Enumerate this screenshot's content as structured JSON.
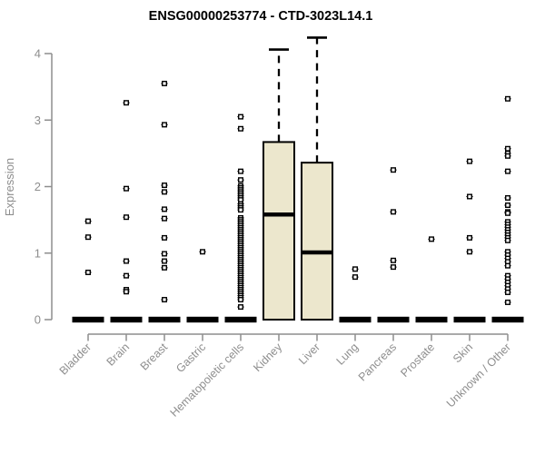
{
  "title": "ENSG00000253774 - CTD-3023L14.1",
  "y_axis_label": "Expression",
  "chart_data": {
    "type": "boxplot",
    "title": "ENSG00000253774 - CTD-3023L14.1",
    "xlabel": "",
    "ylabel": "Expression",
    "ylim": [
      0,
      4
    ],
    "y_ticks": [
      0,
      1,
      2,
      3,
      4
    ],
    "grid": false,
    "legend": false,
    "categories": [
      "Bladder",
      "Brain",
      "Breast",
      "Gastric",
      "Hematopoietic cells",
      "Kidney",
      "Liver",
      "Lung",
      "Pancreas",
      "Prostate",
      "Skin",
      "Unknown / Other"
    ],
    "groups": [
      {
        "name": "Bladder",
        "q1": 0,
        "median": 0,
        "q3": 0,
        "whisker_low": 0,
        "whisker_high": 0,
        "collapsed": true,
        "outliers": [
          1.48,
          1.24,
          0.71
        ]
      },
      {
        "name": "Brain",
        "q1": 0,
        "median": 0,
        "q3": 0,
        "whisker_low": 0,
        "whisker_high": 0,
        "collapsed": true,
        "outliers": [
          3.26,
          1.97,
          1.54,
          0.88,
          0.66,
          0.45,
          0.42
        ]
      },
      {
        "name": "Breast",
        "q1": 0,
        "median": 0,
        "q3": 0,
        "whisker_low": 0,
        "whisker_high": 0,
        "collapsed": true,
        "outliers": [
          3.55,
          2.93,
          2.02,
          1.92,
          1.66,
          1.52,
          1.23,
          0.99,
          0.88,
          0.78,
          0.3
        ]
      },
      {
        "name": "Gastric",
        "q1": 0,
        "median": 0,
        "q3": 0,
        "whisker_low": 0,
        "whisker_high": 0,
        "collapsed": true,
        "outliers": [
          1.02
        ]
      },
      {
        "name": "Hematopoietic cells",
        "q1": 0,
        "median": 0,
        "q3": 0,
        "whisker_low": 0,
        "whisker_high": 0,
        "collapsed": true,
        "outliers": [
          3.05,
          2.87,
          2.23,
          2.1,
          2.01,
          1.98,
          1.95,
          1.92,
          1.89,
          1.86,
          1.83,
          1.8,
          1.74,
          1.71,
          1.68,
          1.65,
          1.53,
          1.5,
          1.47,
          1.44,
          1.41,
          1.38,
          1.35,
          1.32,
          1.29,
          1.26,
          1.23,
          1.2,
          1.17,
          1.14,
          1.11,
          1.08,
          1.05,
          1.02,
          0.99,
          0.96,
          0.93,
          0.9,
          0.87,
          0.84,
          0.81,
          0.78,
          0.75,
          0.72,
          0.69,
          0.66,
          0.63,
          0.6,
          0.57,
          0.54,
          0.51,
          0.48,
          0.45,
          0.42,
          0.39,
          0.36,
          0.33,
          0.3,
          0.19
        ]
      },
      {
        "name": "Kidney",
        "q1": 0,
        "median": 1.58,
        "q3": 2.67,
        "whisker_low": 0,
        "whisker_high": 4.06,
        "collapsed": false,
        "outliers": []
      },
      {
        "name": "Liver",
        "q1": 0,
        "median": 1.01,
        "q3": 2.36,
        "whisker_low": 0,
        "whisker_high": 4.24,
        "collapsed": false,
        "outliers": []
      },
      {
        "name": "Lung",
        "q1": 0,
        "median": 0,
        "q3": 0,
        "whisker_low": 0,
        "whisker_high": 0,
        "collapsed": true,
        "outliers": [
          0.76,
          0.64
        ]
      },
      {
        "name": "Pancreas",
        "q1": 0,
        "median": 0,
        "q3": 0,
        "whisker_low": 0,
        "whisker_high": 0,
        "collapsed": true,
        "outliers": [
          2.25,
          1.62,
          0.89,
          0.79
        ]
      },
      {
        "name": "Prostate",
        "q1": 0,
        "median": 0,
        "q3": 0,
        "whisker_low": 0,
        "whisker_high": 0,
        "collapsed": true,
        "outliers": [
          1.21
        ]
      },
      {
        "name": "Skin",
        "q1": 0,
        "median": 0,
        "q3": 0,
        "whisker_low": 0,
        "whisker_high": 0,
        "collapsed": true,
        "outliers": [
          2.38,
          1.85,
          1.23,
          1.02
        ]
      },
      {
        "name": "Unknown / Other",
        "q1": 0,
        "median": 0,
        "q3": 0,
        "whisker_low": 0,
        "whisker_high": 0,
        "collapsed": true,
        "outliers": [
          3.32,
          2.57,
          2.5,
          2.46,
          2.23,
          1.83,
          1.72,
          1.62,
          1.6,
          1.47,
          1.43,
          1.39,
          1.35,
          1.31,
          1.27,
          1.23,
          1.19,
          1.02,
          0.97,
          0.92,
          0.87,
          0.81,
          0.66,
          0.61,
          0.56,
          0.51,
          0.46,
          0.41,
          0.26
        ]
      }
    ],
    "colors": {
      "box_fill": "#ECE7CD",
      "box_stroke": "#000000",
      "median": "#000000",
      "whisker": "#000000",
      "outlier": "#000000",
      "axis": "#8e8e8e",
      "title": "#000000",
      "background": "#ffffff"
    }
  }
}
